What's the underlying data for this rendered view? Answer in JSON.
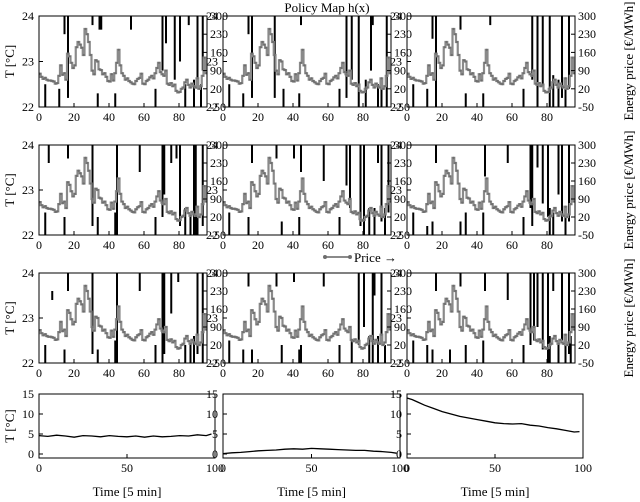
{
  "title": "Policy Map h(x)",
  "policy": {
    "x": {
      "min": 0,
      "max": 96,
      "ticks": [
        0,
        20,
        40,
        60,
        80
      ]
    },
    "y": {
      "min": 22,
      "max": 24,
      "ticks": [
        22,
        23,
        24
      ]
    },
    "y_label": "T [°C]",
    "y2_ticks": [
      300,
      230,
      160,
      90,
      20,
      -50
    ],
    "y2_label": "Energy price [€/MWh]",
    "legend_label": "Price →"
  },
  "price": {
    "x": [
      0,
      1,
      2,
      3,
      4,
      5,
      6,
      7,
      8,
      9,
      10,
      11,
      12,
      13,
      14,
      15,
      16,
      17,
      18,
      19,
      20,
      21,
      22,
      23,
      24,
      25,
      26,
      27,
      28,
      29,
      30,
      31,
      32,
      33,
      34,
      35,
      36,
      37,
      38,
      39,
      40,
      41,
      42,
      43,
      44,
      45,
      46,
      47,
      48,
      49,
      50,
      51,
      52,
      53,
      54,
      55,
      56,
      57,
      58,
      59,
      60,
      61,
      62,
      63,
      64,
      65,
      66,
      67,
      68,
      69,
      70,
      71,
      72,
      73,
      74,
      75,
      76,
      77,
      78,
      79,
      80,
      81,
      82,
      83,
      84,
      85,
      86,
      87,
      88,
      89,
      90,
      91,
      92,
      93,
      94,
      95
    ],
    "y": [
      78,
      66,
      58,
      62,
      55,
      52,
      52,
      50,
      48,
      40,
      42,
      70,
      110,
      74,
      80,
      55,
      155,
      145,
      120,
      100,
      110,
      180,
      200,
      190,
      178,
      150,
      250,
      230,
      200,
      150,
      90,
      76,
      130,
      125,
      95,
      92,
      76,
      80,
      66,
      50,
      48,
      76,
      52,
      80,
      120,
      170,
      110,
      80,
      70,
      55,
      60,
      50,
      45,
      40,
      38,
      50,
      58,
      62,
      78,
      40,
      38,
      50,
      55,
      64,
      70,
      60,
      80,
      100,
      120,
      84,
      76,
      70,
      90,
      40,
      35,
      42,
      30,
      36,
      12,
      6,
      8,
      20,
      25,
      45,
      55,
      35,
      25,
      40,
      30,
      25,
      60,
      20,
      30,
      70,
      140,
      80
    ]
  },
  "chart_data": [
    {
      "type": "heatmap",
      "panel": 1,
      "title": "Policy Map h(x)",
      "ylabel": "T [°C]",
      "y2label": "",
      "xlim": [
        0,
        96
      ],
      "ylim": [
        22,
        24
      ],
      "y2lim": [
        -50,
        300
      ],
      "series": [
        {
          "name": "Price",
          "source": "price"
        }
      ]
    },
    {
      "type": "heatmap",
      "panel": 2,
      "ylabel": "",
      "y2label": "",
      "xlim": [
        0,
        96
      ],
      "ylim": [
        22,
        24
      ],
      "y2lim": [
        -50,
        300
      ]
    },
    {
      "type": "heatmap",
      "panel": 3,
      "ylabel": "",
      "y2label": "Energy price [€/MWh]",
      "xlim": [
        0,
        96
      ],
      "ylim": [
        22,
        24
      ],
      "y2lim": [
        -50,
        300
      ]
    },
    {
      "type": "heatmap",
      "panel": 4,
      "ylabel": "T [°C]",
      "y2label": "",
      "xlim": [
        0,
        96
      ],
      "ylim": [
        22,
        24
      ],
      "y2lim": [
        -50,
        300
      ]
    },
    {
      "type": "heatmap",
      "panel": 5,
      "ylabel": "",
      "y2label": "",
      "xlim": [
        0,
        96
      ],
      "ylim": [
        22,
        24
      ],
      "y2lim": [
        -50,
        300
      ]
    },
    {
      "type": "heatmap",
      "panel": 6,
      "ylabel": "",
      "y2label": "Energy price [€/MWh]",
      "xlim": [
        0,
        96
      ],
      "ylim": [
        22,
        24
      ],
      "y2lim": [
        -50,
        300
      ]
    },
    {
      "type": "heatmap",
      "panel": 7,
      "ylabel": "T [°C]",
      "y2label": "",
      "xlim": [
        0,
        96
      ],
      "ylim": [
        22,
        24
      ],
      "y2lim": [
        -50,
        300
      ]
    },
    {
      "type": "heatmap",
      "panel": 8,
      "ylabel": "",
      "y2label": "",
      "xlim": [
        0,
        96
      ],
      "ylim": [
        22,
        24
      ],
      "y2lim": [
        -50,
        300
      ],
      "legend": "Price →"
    },
    {
      "type": "heatmap",
      "panel": 9,
      "ylabel": "",
      "y2label": "Energy price [€/MWh]",
      "xlim": [
        0,
        96
      ],
      "ylim": [
        22,
        24
      ],
      "y2lim": [
        -50,
        300
      ]
    },
    {
      "type": "line",
      "panel": 10,
      "xlabel": "Time [5 min]",
      "ylabel": "T [°C]",
      "xlim": [
        0,
        100
      ],
      "ylim": [
        -1,
        15
      ],
      "xticks": [
        0,
        50,
        100
      ],
      "yticks": [
        0,
        5,
        10,
        15
      ],
      "series": [
        {
          "x": [
            0,
            5,
            10,
            15,
            20,
            25,
            30,
            35,
            40,
            45,
            50,
            55,
            60,
            65,
            70,
            75,
            80,
            85,
            90,
            95,
            98
          ],
          "values": [
            4.6,
            4.4,
            4.7,
            4.5,
            4.2,
            4.6,
            4.5,
            4.3,
            4.6,
            4.4,
            4.3,
            4.5,
            4.2,
            4.5,
            4.3,
            4.4,
            4.6,
            4.5,
            4.8,
            4.6,
            5.0
          ]
        }
      ]
    },
    {
      "type": "line",
      "panel": 11,
      "xlabel": "Time [5 min]",
      "ylabel": "",
      "xlim": [
        0,
        100
      ],
      "ylim": [
        -1,
        15
      ],
      "xticks": [
        0,
        50,
        100
      ],
      "yticks": [
        0,
        5,
        10,
        15
      ],
      "series": [
        {
          "x": [
            0,
            5,
            10,
            15,
            20,
            25,
            30,
            35,
            40,
            45,
            50,
            55,
            60,
            65,
            70,
            75,
            80,
            85,
            90,
            95,
            98
          ],
          "values": [
            0.1,
            0.3,
            0.4,
            0.6,
            0.8,
            0.9,
            1.0,
            1.2,
            1.3,
            1.2,
            1.4,
            1.3,
            1.2,
            1.1,
            1.0,
            0.9,
            0.9,
            0.7,
            0.6,
            0.4,
            0.2
          ]
        }
      ]
    },
    {
      "type": "line",
      "panel": 12,
      "xlabel": "Time [5 min]",
      "ylabel": "",
      "xlim": [
        0,
        100
      ],
      "ylim": [
        -1,
        15
      ],
      "xticks": [
        0,
        50,
        100
      ],
      "yticks": [
        0,
        5,
        10,
        15
      ],
      "series": [
        {
          "x": [
            0,
            3,
            6,
            10,
            15,
            20,
            25,
            30,
            35,
            40,
            45,
            50,
            55,
            60,
            65,
            70,
            75,
            80,
            85,
            90,
            95,
            98
          ],
          "values": [
            14.0,
            13.6,
            13.0,
            12.2,
            11.4,
            10.6,
            10.0,
            9.4,
            9.0,
            8.6,
            8.2,
            7.8,
            7.6,
            7.5,
            7.6,
            7.2,
            7.0,
            6.6,
            6.3,
            5.9,
            5.5,
            5.6
          ]
        }
      ]
    }
  ],
  "policy_bars": [
    [
      [
        3,
        22,
        22.5
      ],
      [
        11,
        22,
        22.4
      ],
      [
        14,
        23.6,
        24
      ],
      [
        16,
        22.2,
        24
      ],
      [
        30,
        23.8,
        24
      ],
      [
        33,
        22,
        22.3
      ],
      [
        34,
        23.7,
        24
      ],
      [
        35,
        23.7,
        24
      ],
      [
        43,
        22,
        22.3
      ],
      [
        52,
        23.7,
        24
      ],
      [
        66,
        22,
        22.4
      ],
      [
        70,
        22.8,
        24
      ],
      [
        72,
        23.4,
        24
      ],
      [
        77,
        22.6,
        24
      ],
      [
        80,
        23,
        24
      ],
      [
        83,
        22,
        22.5
      ],
      [
        85,
        23.8,
        24
      ],
      [
        88,
        22,
        22.6
      ],
      [
        90,
        22.4,
        24
      ],
      [
        92,
        22,
        22.5
      ],
      [
        93,
        22.8,
        24
      ]
    ],
    [
      [
        3,
        22,
        22.5
      ],
      [
        11,
        22,
        22.3
      ],
      [
        14,
        23.6,
        24
      ],
      [
        16,
        22.2,
        24
      ],
      [
        29,
        22.2,
        24
      ],
      [
        34,
        22,
        22.4
      ],
      [
        43,
        22,
        22.3
      ],
      [
        44,
        23.8,
        24
      ],
      [
        66,
        22,
        22.4
      ],
      [
        70,
        22.2,
        24
      ],
      [
        73,
        22.6,
        24
      ],
      [
        77,
        22,
        24
      ],
      [
        81,
        22,
        22.6
      ],
      [
        84,
        22.8,
        24
      ],
      [
        85,
        23.8,
        24
      ],
      [
        88,
        22,
        22.5
      ],
      [
        90,
        22,
        22.6
      ],
      [
        93,
        22,
        24
      ]
    ],
    [
      [
        3,
        22,
        22.5
      ],
      [
        11,
        22,
        22.4
      ],
      [
        14,
        23.5,
        24
      ],
      [
        16,
        22,
        24
      ],
      [
        30,
        23.7,
        24
      ],
      [
        33,
        22,
        22.3
      ],
      [
        43,
        22,
        22.3
      ],
      [
        47,
        23.8,
        24
      ],
      [
        66,
        22,
        22.4
      ],
      [
        71,
        22.6,
        24
      ],
      [
        74,
        22,
        24
      ],
      [
        77,
        22.5,
        24
      ],
      [
        81,
        22,
        24
      ],
      [
        83,
        22,
        22.7
      ],
      [
        86,
        22,
        22.6
      ],
      [
        88,
        22.2,
        24
      ],
      [
        90,
        22,
        22.4
      ],
      [
        92,
        22.4,
        24
      ]
    ],
    [
      [
        3,
        22,
        22.5
      ],
      [
        5,
        23.6,
        24
      ],
      [
        14,
        22,
        22.4
      ],
      [
        16,
        23.7,
        24
      ],
      [
        30,
        22.2,
        24
      ],
      [
        33,
        22,
        22.4
      ],
      [
        43,
        22,
        22.5
      ],
      [
        44,
        22,
        24
      ],
      [
        57,
        23.4,
        24
      ],
      [
        66,
        22,
        22.4
      ],
      [
        70,
        22.4,
        24
      ],
      [
        71,
        22.9,
        24
      ],
      [
        75,
        23.6,
        24
      ],
      [
        78,
        23.7,
        24
      ],
      [
        80,
        22.2,
        24
      ],
      [
        83,
        22,
        22.6
      ],
      [
        86,
        22,
        22.5
      ],
      [
        88,
        22,
        24
      ],
      [
        89,
        22,
        24
      ],
      [
        90,
        22,
        22.5
      ],
      [
        93,
        22.2,
        24
      ]
    ],
    [
      [
        3,
        22,
        22.5
      ],
      [
        14,
        22,
        22.4
      ],
      [
        16,
        23.6,
        24
      ],
      [
        30,
        23.7,
        24
      ],
      [
        33,
        22,
        22.3
      ],
      [
        40,
        23.7,
        24
      ],
      [
        43,
        22,
        22.4
      ],
      [
        44,
        23.4,
        24
      ],
      [
        57,
        23.2,
        24
      ],
      [
        66,
        22,
        22.4
      ],
      [
        70,
        23.1,
        24
      ],
      [
        72,
        22.6,
        24
      ],
      [
        78,
        22.2,
        24
      ],
      [
        80,
        22,
        24
      ],
      [
        83,
        22,
        22.6
      ],
      [
        86,
        22,
        22.6
      ],
      [
        88,
        23.6,
        24
      ],
      [
        90,
        22.3,
        24
      ],
      [
        92,
        22,
        22.6
      ],
      [
        94,
        22.5,
        24
      ]
    ],
    [
      [
        3,
        22,
        22.5
      ],
      [
        11,
        22,
        22.2
      ],
      [
        14,
        22,
        22.3
      ],
      [
        16,
        23.6,
        24
      ],
      [
        30,
        22,
        22.3
      ],
      [
        33,
        22,
        22.5
      ],
      [
        43,
        22,
        22.5
      ],
      [
        44,
        23.3,
        24
      ],
      [
        57,
        23.6,
        24
      ],
      [
        66,
        22,
        22.4
      ],
      [
        70,
        22.6,
        24
      ],
      [
        71,
        22.2,
        24
      ],
      [
        74,
        23.5,
        24
      ],
      [
        77,
        22.7,
        24
      ],
      [
        80,
        22.4,
        24
      ],
      [
        81,
        22,
        22.6
      ],
      [
        83,
        22,
        22.5
      ],
      [
        86,
        22.9,
        24
      ],
      [
        88,
        22.3,
        24
      ],
      [
        90,
        22,
        22.5
      ],
      [
        92,
        22.3,
        24
      ]
    ],
    [
      [
        3,
        22,
        22.4
      ],
      [
        7,
        23.4,
        23.6
      ],
      [
        14,
        22,
        22.3
      ],
      [
        16,
        23.6,
        24
      ],
      [
        30,
        22.2,
        24
      ],
      [
        33,
        22,
        22.3
      ],
      [
        43,
        22,
        22.5
      ],
      [
        44,
        22,
        24
      ],
      [
        57,
        23.6,
        24
      ],
      [
        66,
        22,
        22.4
      ],
      [
        70,
        22,
        24
      ],
      [
        71,
        22.2,
        24
      ],
      [
        75,
        23.1,
        24
      ],
      [
        79,
        23.8,
        24
      ],
      [
        83,
        22,
        22.4
      ],
      [
        86,
        22,
        22.5
      ],
      [
        88,
        22,
        22.6
      ],
      [
        90,
        22.2,
        24
      ],
      [
        93,
        22,
        24
      ]
    ],
    [
      [
        3,
        22,
        22.5
      ],
      [
        11,
        22,
        22.3
      ],
      [
        14,
        23.7,
        24
      ],
      [
        16,
        22,
        22.3
      ],
      [
        30,
        23.7,
        24
      ],
      [
        33,
        22,
        22.4
      ],
      [
        40,
        23.8,
        24
      ],
      [
        43,
        22,
        22.3
      ],
      [
        44,
        22,
        22.4
      ],
      [
        57,
        23.7,
        24
      ],
      [
        66,
        22,
        22.4
      ],
      [
        73,
        22,
        22.5
      ],
      [
        77,
        22.4,
        24
      ],
      [
        80,
        22.8,
        24
      ],
      [
        83,
        22,
        22.6
      ],
      [
        85,
        22,
        24
      ],
      [
        86,
        23.5,
        24
      ],
      [
        88,
        22,
        22.6
      ],
      [
        90,
        22.6,
        24
      ],
      [
        92,
        22,
        22.4
      ]
    ],
    [
      [
        3,
        22,
        22.5
      ],
      [
        11,
        22,
        22.4
      ],
      [
        14,
        22,
        22.3
      ],
      [
        16,
        23.6,
        24
      ],
      [
        24,
        22,
        22.3
      ],
      [
        30,
        23.7,
        24
      ],
      [
        33,
        22,
        22.4
      ],
      [
        43,
        22,
        22.5
      ],
      [
        44,
        23.6,
        24
      ],
      [
        57,
        23.4,
        24
      ],
      [
        66,
        22,
        22.4
      ],
      [
        70,
        22.4,
        24
      ],
      [
        72,
        22.5,
        24
      ],
      [
        74,
        22.8,
        24
      ],
      [
        77,
        22.3,
        24
      ],
      [
        80,
        22,
        24
      ],
      [
        81,
        22,
        22.6
      ],
      [
        83,
        23.6,
        24
      ],
      [
        86,
        22,
        22.5
      ],
      [
        88,
        22.5,
        24
      ],
      [
        90,
        22,
        22.4
      ],
      [
        92,
        22.2,
        24
      ],
      [
        93,
        22,
        22.6
      ]
    ]
  ]
}
